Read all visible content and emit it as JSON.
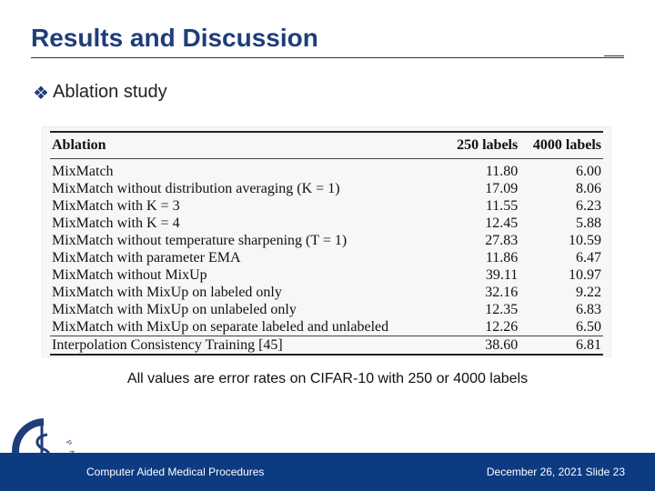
{
  "slide": {
    "title": "Results and Discussion",
    "bullet_icon": "diamond-bullet-icon",
    "bullet": "Ablation study",
    "caption": "All values are error rates on CIFAR-10 with 250 or 4000 labels"
  },
  "table": {
    "headers": [
      "Ablation",
      "250 labels",
      "4000 labels"
    ],
    "rows": [
      [
        "MixMatch",
        "11.80",
        "6.00"
      ],
      [
        "MixMatch without distribution averaging (K = 1)",
        "17.09",
        "8.06"
      ],
      [
        "MixMatch with K = 3",
        "11.55",
        "6.23"
      ],
      [
        "MixMatch with K = 4",
        "12.45",
        "5.88"
      ],
      [
        "MixMatch without temperature sharpening (T = 1)",
        "27.83",
        "10.59"
      ],
      [
        "MixMatch with parameter EMA",
        "11.86",
        "6.47"
      ],
      [
        "MixMatch without MixUp",
        "39.11",
        "10.97"
      ],
      [
        "MixMatch with MixUp on labeled only",
        "32.16",
        "9.22"
      ],
      [
        "MixMatch with MixUp on unlabeled only",
        "12.35",
        "6.83"
      ],
      [
        "MixMatch with MixUp on separate labeled and unlabeled",
        "12.26",
        "6.50"
      ],
      [
        "Interpolation Consistency Training [45]",
        "38.60",
        "6.81"
      ]
    ]
  },
  "footer": {
    "left": "Computer Aided Medical Procedures",
    "right": "December 26, 2021  Slide 23",
    "logo_icon": "camp-logo-icon",
    "logo_text": "CAMP",
    "color": "#0d3b82"
  },
  "colors": {
    "title": "#1f3d7a"
  }
}
